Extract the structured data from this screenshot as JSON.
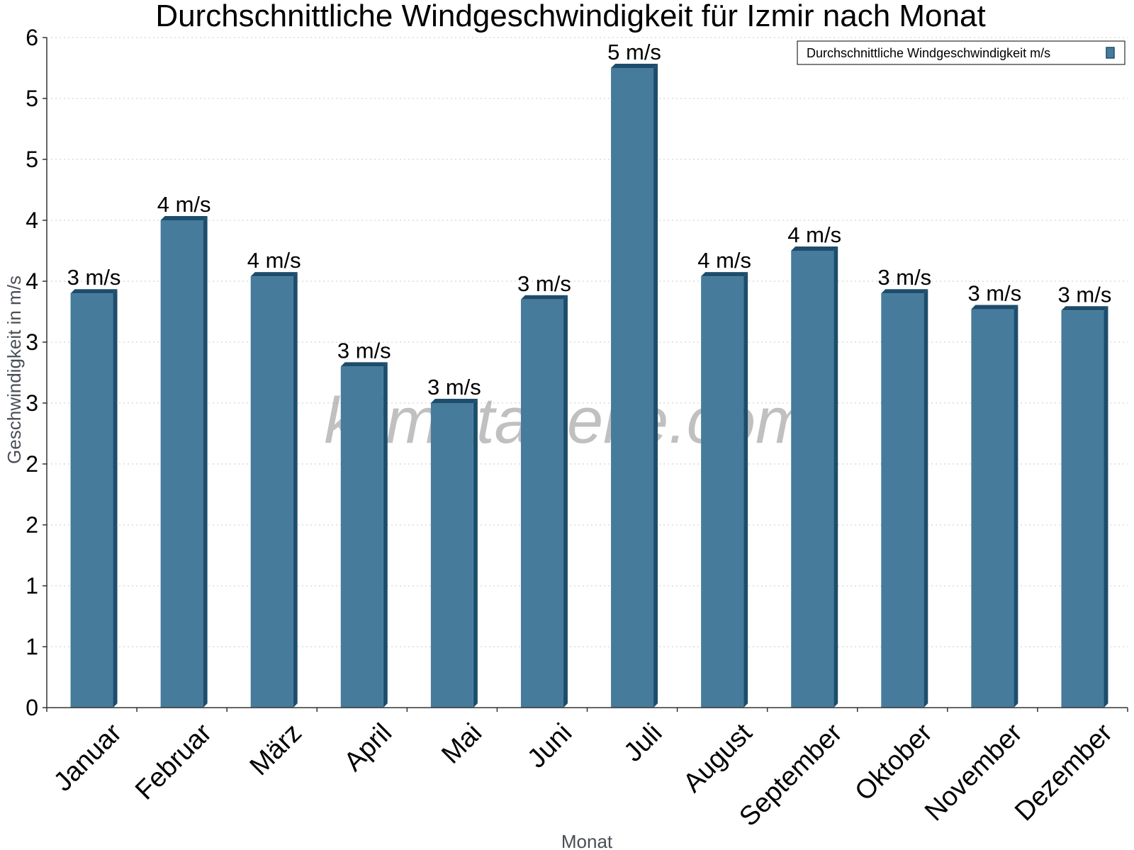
{
  "colors": {
    "bar_front": "#467b9c",
    "bar_side": "#1d4d6c",
    "bar_top": "#1d4d6c"
  },
  "watermark": "klimatabelle.com",
  "chart_data": {
    "type": "bar",
    "title": "Durchschnittliche Windgeschwindigkeit für Izmir nach Monat",
    "xlabel": "Monat",
    "ylabel": "Geschwindigkeit in m/s",
    "ylim": [
      0,
      5.5
    ],
    "y_ticks": [
      0,
      0.5,
      1,
      1.5,
      2,
      2.5,
      3,
      3.5,
      4,
      4.5,
      5,
      5.5
    ],
    "y_tick_labels": [
      "0",
      "1",
      "1",
      "2",
      "2",
      "3",
      "3",
      "4",
      "4",
      "5",
      "5",
      "6"
    ],
    "grid": true,
    "legend": {
      "position": "top-right",
      "entries": [
        "Durchschnittliche Windgeschwindigkeit m/s"
      ]
    },
    "categories": [
      "Januar",
      "Februar",
      "März",
      "April",
      "Mai",
      "Juni",
      "Juli",
      "August",
      "September",
      "Oktober",
      "November",
      "Dezember"
    ],
    "series": [
      {
        "name": "Durchschnittliche Windgeschwindigkeit m/s",
        "values": [
          3.4,
          4.0,
          3.54,
          2.8,
          2.5,
          3.35,
          5.25,
          3.54,
          3.75,
          3.4,
          3.27,
          3.26
        ],
        "labels": [
          "3 m/s",
          "4 m/s",
          "4 m/s",
          "3 m/s",
          "3 m/s",
          "3 m/s",
          "5 m/s",
          "4 m/s",
          "4 m/s",
          "3 m/s",
          "3 m/s",
          "3 m/s"
        ]
      }
    ]
  }
}
